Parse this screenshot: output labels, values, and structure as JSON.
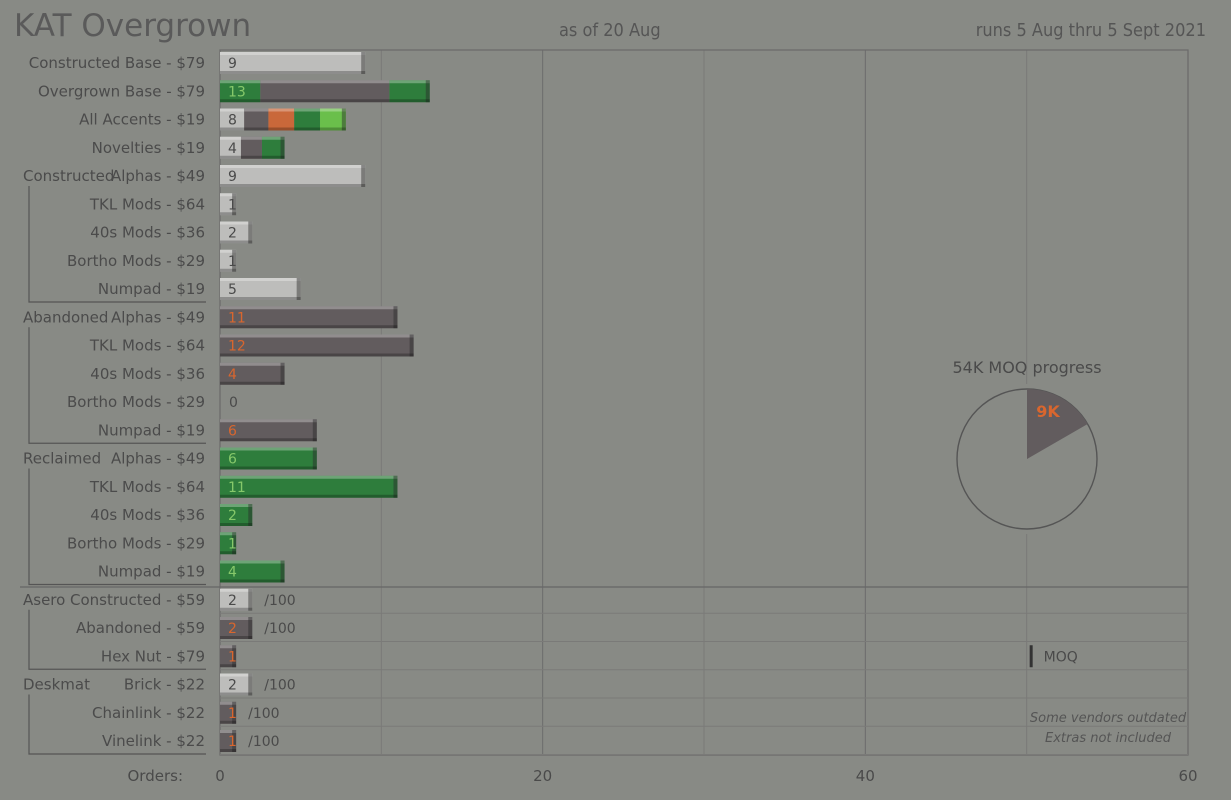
{
  "header": {
    "title": "KAT Overgrown",
    "as_of": "as of 20 Aug",
    "runs": "runs 5 Aug thru 5 Sept 2021"
  },
  "colors": {
    "background": "#888a85",
    "constructed": "#bdbdbb",
    "abandoned": "#625c5e",
    "abandoned_text": "#d9662e",
    "reclaimed": "#2e7d3c",
    "reclaimed_text": "#86c86a",
    "accent_orange": "#c9683a",
    "accent_lightgreen": "#6abf4b"
  },
  "pie": {
    "title": "54K MOQ progress",
    "label": "9K",
    "progress": 0.1667
  },
  "notes": [
    "Some vendors outdated",
    "Extras not included"
  ],
  "moq_label": "MOQ",
  "chart_data": {
    "type": "bar",
    "orientation": "horizontal",
    "xlim": [
      0,
      60
    ],
    "xticks": [
      0,
      20,
      40,
      60
    ],
    "xlabel": "Orders:",
    "rows": [
      {
        "label": "Constructed Base - $79",
        "value": 9,
        "segments": [
          {
            "kind": "constructed",
            "value": 9
          }
        ]
      },
      {
        "label": "Overgrown Base - $79",
        "value": 13,
        "segments": [
          {
            "kind": "reclaimed",
            "value": 2.5
          },
          {
            "kind": "abandoned",
            "value": 8
          },
          {
            "kind": "reclaimed",
            "value": 2.5
          }
        ]
      },
      {
        "label": "All Accents - $19",
        "value": 8,
        "segments": [
          {
            "kind": "constructed",
            "value": 1.5
          },
          {
            "kind": "abandoned",
            "value": 1.5
          },
          {
            "kind": "orange",
            "value": 1.6
          },
          {
            "kind": "reclaimed",
            "value": 1.6
          },
          {
            "kind": "lightgreen",
            "value": 1.6
          }
        ]
      },
      {
        "label": "Novelties - $19",
        "value": 4,
        "segments": [
          {
            "kind": "constructed",
            "value": 1.3
          },
          {
            "kind": "abandoned",
            "value": 1.3
          },
          {
            "kind": "reclaimed",
            "value": 1.4
          }
        ]
      },
      {
        "group": "Constructed",
        "label": "Alphas - $49",
        "value": 9,
        "segments": [
          {
            "kind": "constructed",
            "value": 9
          }
        ]
      },
      {
        "label": "TKL Mods - $64",
        "value": 1,
        "segments": [
          {
            "kind": "constructed",
            "value": 1
          }
        ]
      },
      {
        "label": "40s Mods - $36",
        "value": 2,
        "segments": [
          {
            "kind": "constructed",
            "value": 2
          }
        ]
      },
      {
        "label": "Bortho Mods - $29",
        "value": 1,
        "segments": [
          {
            "kind": "constructed",
            "value": 1
          }
        ]
      },
      {
        "label": "Numpad - $19",
        "value": 5,
        "segments": [
          {
            "kind": "constructed",
            "value": 5
          }
        ]
      },
      {
        "group": "Abandoned",
        "label": "Alphas - $49",
        "value": 11,
        "segments": [
          {
            "kind": "abandoned",
            "value": 11
          }
        ]
      },
      {
        "label": "TKL Mods - $64",
        "value": 12,
        "segments": [
          {
            "kind": "abandoned",
            "value": 12
          }
        ]
      },
      {
        "label": "40s Mods - $36",
        "value": 4,
        "segments": [
          {
            "kind": "abandoned",
            "value": 4
          }
        ]
      },
      {
        "label": "Bortho Mods - $29",
        "value": 0,
        "segments": []
      },
      {
        "label": "Numpad - $19",
        "value": 6,
        "segments": [
          {
            "kind": "abandoned",
            "value": 6
          }
        ]
      },
      {
        "group": "Reclaimed",
        "label": "Alphas - $49",
        "value": 6,
        "segments": [
          {
            "kind": "reclaimed",
            "value": 6
          }
        ]
      },
      {
        "label": "TKL Mods - $64",
        "value": 11,
        "segments": [
          {
            "kind": "reclaimed",
            "value": 11
          }
        ]
      },
      {
        "label": "40s Mods - $36",
        "value": 2,
        "segments": [
          {
            "kind": "reclaimed",
            "value": 2
          }
        ]
      },
      {
        "label": "Bortho Mods - $29",
        "value": 1,
        "segments": [
          {
            "kind": "reclaimed",
            "value": 1
          }
        ]
      },
      {
        "label": "Numpad - $19",
        "value": 4,
        "segments": [
          {
            "kind": "reclaimed",
            "value": 4
          }
        ]
      },
      {
        "group": "Asero",
        "label": "Constructed - $59",
        "value": 2,
        "suffix": "/100",
        "segments": [
          {
            "kind": "constructed",
            "value": 2
          }
        ]
      },
      {
        "label": "Abandoned - $59",
        "value": 2,
        "suffix": "/100",
        "segments": [
          {
            "kind": "abandoned",
            "value": 2
          }
        ]
      },
      {
        "label": "Hex Nut - $79",
        "value": 1,
        "segments": [
          {
            "kind": "abandoned",
            "value": 1
          }
        ],
        "moq": 50
      },
      {
        "group": "Deskmat",
        "label": "Brick - $22",
        "value": 2,
        "suffix": "/100",
        "segments": [
          {
            "kind": "constructed",
            "value": 2
          }
        ]
      },
      {
        "label": "Chainlink - $22",
        "value": 1,
        "suffix": "/100",
        "segments": [
          {
            "kind": "abandoned",
            "value": 1
          }
        ]
      },
      {
        "label": "Vinelink - $22",
        "value": 1,
        "suffix": "/100",
        "segments": [
          {
            "kind": "abandoned",
            "value": 1
          }
        ]
      }
    ]
  }
}
